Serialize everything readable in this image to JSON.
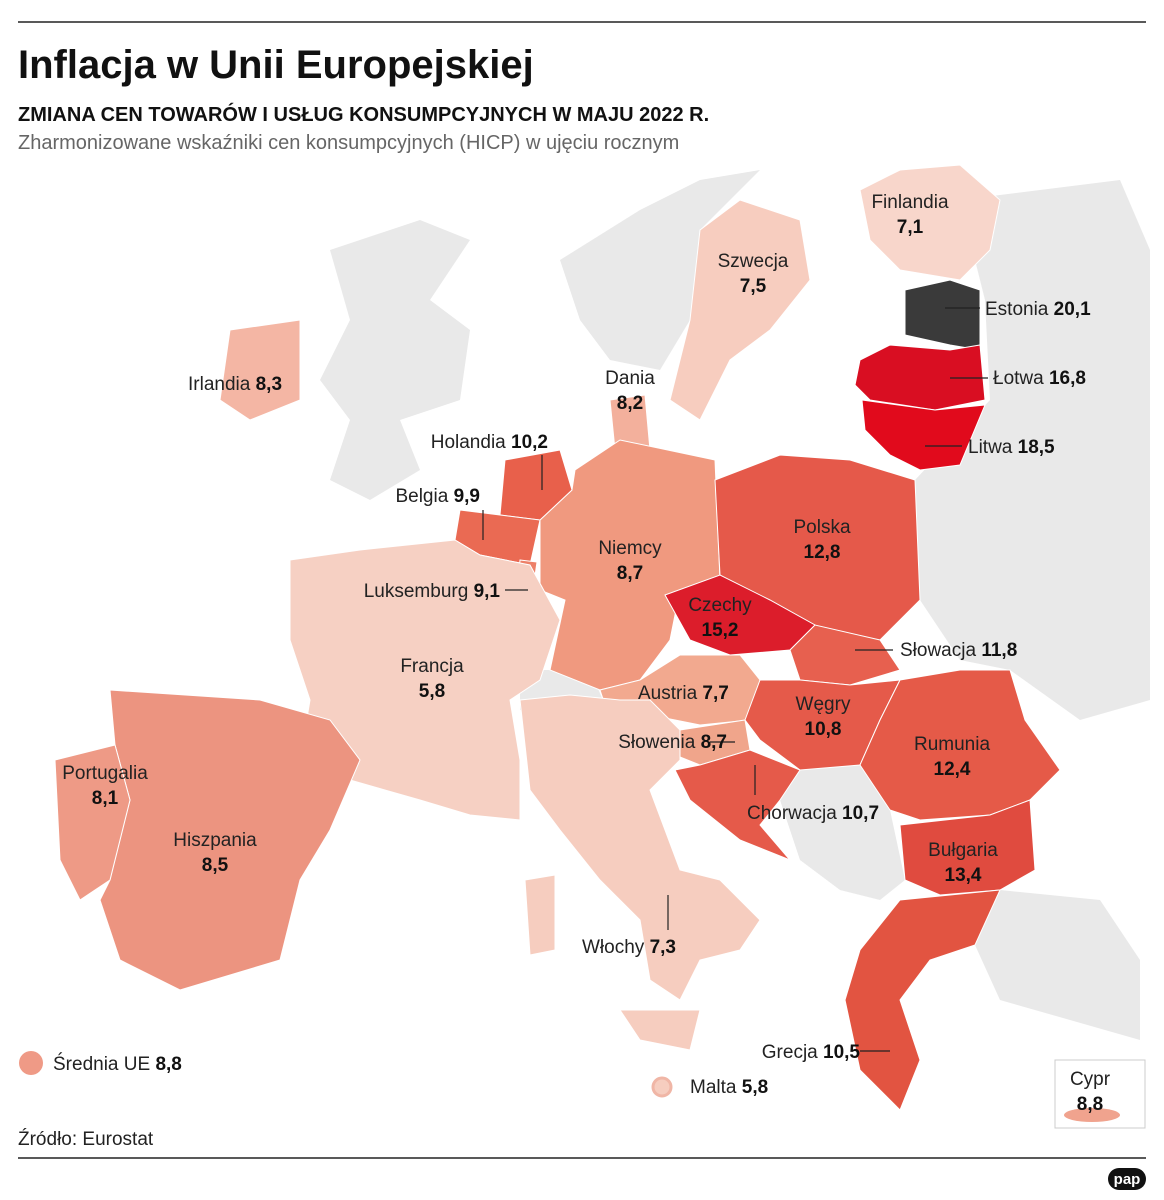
{
  "header": {
    "title": "Inflacja w Unii Europejskiej",
    "subtitle": "ZMIANA CEN TOWARÓW I USŁUG KONSUMPCYJNYCH W MAJU 2022 R.",
    "description": "Zharmonizowane wskaźniki cen konsumpcyjnych (HICP) w ujęciu rocznym"
  },
  "countries": [
    {
      "name": "Finlandia",
      "value": "7,1"
    },
    {
      "name": "Szwecja",
      "value": "7,5"
    },
    {
      "name": "Estonia",
      "value": "20,1"
    },
    {
      "name": "Łotwa",
      "value": "16,8"
    },
    {
      "name": "Litwa",
      "value": "18,5"
    },
    {
      "name": "Irlandia",
      "value": "8,3"
    },
    {
      "name": "Dania",
      "value": "8,2"
    },
    {
      "name": "Holandia",
      "value": "10,2"
    },
    {
      "name": "Belgia",
      "value": "9,9"
    },
    {
      "name": "Niemcy",
      "value": "8,7"
    },
    {
      "name": "Polska",
      "value": "12,8"
    },
    {
      "name": "Luksemburg",
      "value": "9,1"
    },
    {
      "name": "Czechy",
      "value": "15,2"
    },
    {
      "name": "Słowacja",
      "value": "11,8"
    },
    {
      "name": "Francja",
      "value": "5,8"
    },
    {
      "name": "Austria",
      "value": "7,7"
    },
    {
      "name": "Węgry",
      "value": "10,8"
    },
    {
      "name": "Rumunia",
      "value": "12,4"
    },
    {
      "name": "Słowenia",
      "value": "8,7"
    },
    {
      "name": "Portugalia",
      "value": "8,1"
    },
    {
      "name": "Hiszpania",
      "value": "8,5"
    },
    {
      "name": "Chorwacja",
      "value": "10,7"
    },
    {
      "name": "Bułgaria",
      "value": "13,4"
    },
    {
      "name": "Włochy",
      "value": "7,3"
    },
    {
      "name": "Grecja",
      "value": "10,5"
    },
    {
      "name": "Cypr",
      "value": "8,8"
    },
    {
      "name": "Malta",
      "value": "5,8"
    }
  ],
  "legend": {
    "label": "Średnia UE",
    "value": "8,8"
  },
  "source": "Źródło: Eurostat",
  "logo": "pap"
}
